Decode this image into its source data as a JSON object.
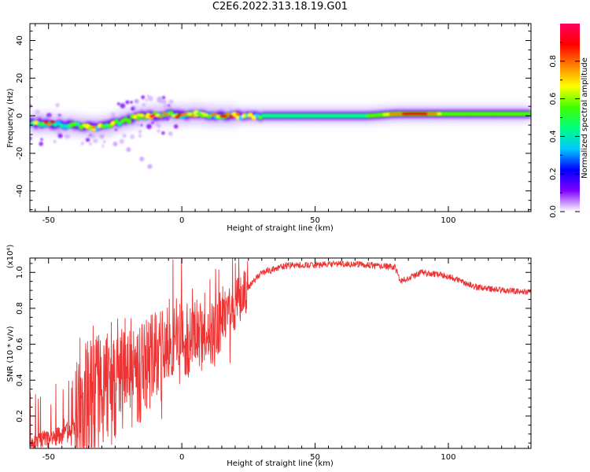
{
  "title": "C2E6.2022.313.18.19.G01",
  "chart_data": [
    {
      "type": "heatmap",
      "xlabel": "Height of straight line (km)",
      "ylabel": "Frequency (Hz)",
      "xlim": [
        -57,
        131
      ],
      "ylim": [
        -51,
        49
      ],
      "x_ticks": [
        -50,
        0,
        50,
        100
      ],
      "y_ticks": [
        -40,
        -20,
        0,
        20,
        40
      ],
      "colorbar": {
        "label": "Normalized spectral amplitude",
        "range": [
          0,
          1
        ],
        "ticks": [
          "0.0",
          "0.2",
          "0.4",
          "0.6",
          "0.8"
        ],
        "colors": [
          "#ffffff",
          "#c8a0ff",
          "#7a00ff",
          "#0000ff",
          "#00d0ff",
          "#00ff80",
          "#40ff00",
          "#ffff00",
          "#ff8000",
          "#ff0000",
          "#ff0080"
        ]
      },
      "ridge": {
        "x": [
          -57,
          -50,
          -45,
          -40,
          -35,
          -30,
          -25,
          -20,
          -15,
          -10,
          -5,
          0,
          5,
          10,
          15,
          20,
          25,
          30,
          40,
          50,
          60,
          70,
          80,
          90,
          100,
          110,
          120,
          131
        ],
        "frequency": [
          -4,
          -4,
          -5,
          -5,
          -6,
          -6,
          -4,
          -2,
          0,
          0,
          1,
          0,
          1,
          0,
          0,
          0,
          0,
          0,
          0,
          0,
          0,
          0,
          1,
          1,
          1,
          1,
          1,
          1
        ],
        "amplitude": [
          0.55,
          0.8,
          0.6,
          0.5,
          0.8,
          0.6,
          0.7,
          0.6,
          0.75,
          0.85,
          0.8,
          0.7,
          0.8,
          0.7,
          0.85,
          0.75,
          0.6,
          0.5,
          0.5,
          0.5,
          0.5,
          0.55,
          0.8,
          0.95,
          0.6,
          0.55,
          0.55,
          0.55
        ]
      },
      "diagonal_trace": {
        "x": [
          -30,
          -25,
          -20,
          -15,
          -12
        ],
        "frequency": [
          -11,
          -15,
          -18,
          -23,
          -27
        ]
      }
    },
    {
      "type": "line",
      "xlabel": "Height of straight line (km)",
      "ylabel": "SNR (10 * v/v)",
      "y_multiplier": "(x10⁴)",
      "xlim": [
        -57,
        131
      ],
      "ylim": [
        0.02,
        1.08
      ],
      "x_ticks": [
        -50,
        0,
        50,
        100
      ],
      "y_ticks": [
        "0.2",
        "0.4",
        "0.6",
        "0.8",
        "1.0"
      ],
      "color": "#ee3333",
      "series": [
        {
          "x": [
            -57,
            -50,
            -45,
            -40,
            -35,
            -30,
            -25,
            -20,
            -15,
            -10,
            -5,
            0,
            5,
            10,
            15,
            20,
            25,
            30,
            35,
            40,
            50,
            60,
            70,
            80,
            82,
            90,
            100,
            110,
            120,
            131
          ],
          "values": [
            0.04,
            0.08,
            0.09,
            0.12,
            0.25,
            0.35,
            0.4,
            0.45,
            0.45,
            0.5,
            0.6,
            0.62,
            0.65,
            0.6,
            0.75,
            0.82,
            0.92,
            1.0,
            1.02,
            1.04,
            1.04,
            1.05,
            1.04,
            1.03,
            0.95,
            1.0,
            0.98,
            0.92,
            0.9,
            0.89
          ]
        }
      ]
    }
  ]
}
